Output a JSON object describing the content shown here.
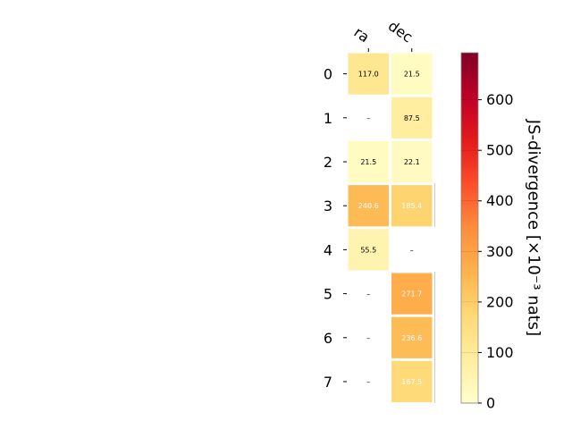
{
  "chart_data": {
    "type": "heatmap",
    "columns": [
      "ra",
      "dec"
    ],
    "rows": [
      "0",
      "1",
      "2",
      "3",
      "4",
      "5",
      "6",
      "7"
    ],
    "values": [
      [
        117.0,
        21.5
      ],
      [
        null,
        87.5
      ],
      [
        21.5,
        22.1
      ],
      [
        240.6,
        185.4
      ],
      [
        55.5,
        null
      ],
      [
        null,
        271.7
      ],
      [
        null,
        236.6
      ],
      [
        null,
        167.5
      ]
    ],
    "missing_label": "–",
    "colorbar": {
      "label": "JS-divergence [×10⁻³ nats]",
      "range": [
        0,
        693
      ],
      "ticks": [
        "0",
        "100",
        "200",
        "300",
        "400",
        "500",
        "600"
      ],
      "tick_values": [
        0,
        100,
        200,
        300,
        400,
        500,
        600
      ],
      "colormap": [
        "#ffffcc",
        "#ffeda0",
        "#fed976",
        "#feb24c",
        "#fd8d3c",
        "#fc4e2a",
        "#e31a1c",
        "#bd0026",
        "#800026"
      ]
    }
  }
}
